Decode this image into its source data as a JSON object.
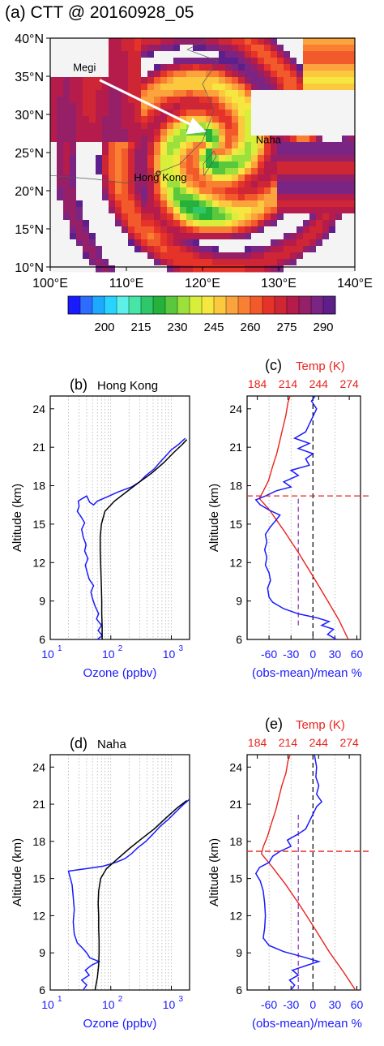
{
  "colors": {
    "ozone": "#1a1aff",
    "temp": "#e8231d",
    "mean": "#000000",
    "tropo": "#e8231d",
    "dashv": "#8f3fbf",
    "grid": "#9a9a9a"
  },
  "chart_data": [
    {
      "panel": "a",
      "type": "heatmap",
      "title": "(a) CTT @ 20160928_05",
      "x_ticks": [
        "100°E",
        "110°E",
        "120°E",
        "130°E",
        "140°E"
      ],
      "y_ticks": [
        "10°N",
        "15°N",
        "20°N",
        "25°N",
        "30°N",
        "35°N",
        "40°N"
      ],
      "xlim": [
        100,
        140
      ],
      "ylim": [
        10,
        40
      ],
      "colorbar": {
        "ticks": [
          "200",
          "215",
          "230",
          "245",
          "260",
          "275",
          "290"
        ],
        "colors": [
          "#1a1aff",
          "#2e6cff",
          "#1ea9ff",
          "#28d4ff",
          "#5cf0e8",
          "#47e6a6",
          "#2ec86a",
          "#25b23c",
          "#5ac83c",
          "#9be03c",
          "#d7ef3a",
          "#f5e640",
          "#fbc83e",
          "#fba33c",
          "#f97f33",
          "#f25a2c",
          "#e6332a",
          "#cf2636",
          "#b51c4c",
          "#962068",
          "#7a2483",
          "#5d1f8c"
        ]
      },
      "labels": {
        "megi": "Megi",
        "hongkong": "Hong Kong",
        "naha": "Naha"
      }
    },
    {
      "panel": "b",
      "type": "line",
      "title": "(b)",
      "subtitle": "Hong Kong",
      "ylabel": "Altitude (km)",
      "xlabel": "Ozone (ppbv)",
      "xscale": "log",
      "xlim": [
        10,
        2000
      ],
      "ylim": [
        6,
        25
      ],
      "x_ticks": [
        {
          "v": 10,
          "t": "10"
        },
        {
          "v": 100,
          "t": "10"
        },
        {
          "v": 1000,
          "t": "10"
        }
      ],
      "x_tick_exps": [
        "1",
        "2",
        "3"
      ],
      "y_ticks": [
        "6",
        "9",
        "12",
        "15",
        "18",
        "21",
        "24"
      ],
      "series": [
        {
          "role": "obs",
          "points": [
            [
              60,
              6
            ],
            [
              72,
              6.3
            ],
            [
              62,
              6.7
            ],
            [
              70,
              7.1
            ],
            [
              58,
              7.6
            ],
            [
              63,
              8.0
            ],
            [
              55,
              8.6
            ],
            [
              50,
              9.2
            ],
            [
              47,
              9.7
            ],
            [
              52,
              10.2
            ],
            [
              44,
              10.7
            ],
            [
              41,
              11.2
            ],
            [
              38,
              11.8
            ],
            [
              42,
              12.3
            ],
            [
              37,
              12.9
            ],
            [
              39,
              13.4
            ],
            [
              35,
              14.0
            ],
            [
              33,
              14.6
            ],
            [
              37,
              15.1
            ],
            [
              32,
              15.6
            ],
            [
              28,
              16.0
            ],
            [
              30,
              16.4
            ],
            [
              29,
              16.8
            ],
            [
              34,
              17.0
            ],
            [
              40,
              17.2
            ],
            [
              45,
              16.7
            ],
            [
              52,
              16.5
            ],
            [
              60,
              16.8
            ],
            [
              85,
              17.1
            ],
            [
              130,
              17.5
            ],
            [
              220,
              17.9
            ],
            [
              300,
              18.3
            ],
            [
              380,
              18.8
            ],
            [
              520,
              19.3
            ],
            [
              640,
              19.8
            ],
            [
              800,
              20.3
            ],
            [
              1000,
              20.8
            ],
            [
              1300,
              21.2
            ],
            [
              1700,
              21.7
            ]
          ]
        },
        {
          "role": "mean",
          "points": [
            [
              72,
              6
            ],
            [
              72,
              7
            ],
            [
              71,
              8
            ],
            [
              71,
              9
            ],
            [
              70,
              10
            ],
            [
              69,
              11
            ],
            [
              68,
              12
            ],
            [
              67,
              13
            ],
            [
              67,
              14
            ],
            [
              70,
              15
            ],
            [
              80,
              16
            ],
            [
              115,
              16.8
            ],
            [
              180,
              17.5
            ],
            [
              300,
              18.3
            ],
            [
              480,
              19
            ],
            [
              750,
              19.8
            ],
            [
              1100,
              20.6
            ],
            [
              1500,
              21.2
            ],
            [
              1800,
              21.6
            ]
          ]
        }
      ]
    },
    {
      "panel": "c",
      "type": "line",
      "title": "(c)",
      "top_label": "Temp (K)",
      "top_ticks": [
        "184",
        "214",
        "244",
        "274"
      ],
      "top_tick_values": [
        184,
        214,
        244,
        274
      ],
      "ylabel": "Altitude (km)",
      "xlabel": "(obs-mean)/mean %",
      "xlim": [
        -90,
        65
      ],
      "toplim": [
        174,
        285
      ],
      "ylim": [
        6,
        25
      ],
      "x_ticks": [
        {
          "v": -60,
          "t": "-60"
        },
        {
          "v": -30,
          "t": "-30"
        },
        {
          "v": 0,
          "t": "0"
        },
        {
          "v": 30,
          "t": "30"
        },
        {
          "v": 60,
          "t": "60"
        }
      ],
      "y_ticks": [
        "6",
        "9",
        "12",
        "15",
        "18",
        "21",
        "24"
      ],
      "tropopause_km": 17.2,
      "purple_x": -20,
      "purple_range": [
        7.1,
        17.2
      ],
      "ratio": [
        [
          32,
          6
        ],
        [
          20,
          6.4
        ],
        [
          28,
          6.8
        ],
        [
          12,
          7.1
        ],
        [
          22,
          7.4
        ],
        [
          5,
          7.7
        ],
        [
          -20,
          8.0
        ],
        [
          -40,
          8.4
        ],
        [
          -55,
          8.9
        ],
        [
          -60,
          9.3
        ],
        [
          -62,
          10
        ],
        [
          -58,
          10.6
        ],
        [
          -60,
          11.2
        ],
        [
          -65,
          11.8
        ],
        [
          -63,
          12.4
        ],
        [
          -66,
          13
        ],
        [
          -63,
          13.6
        ],
        [
          -65,
          14.2
        ],
        [
          -58,
          14.8
        ],
        [
          -52,
          15.2
        ],
        [
          -45,
          15.7
        ],
        [
          -60,
          16.1
        ],
        [
          -72,
          16.5
        ],
        [
          -78,
          16.9
        ],
        [
          -65,
          17.2
        ],
        [
          -50,
          17.6
        ],
        [
          -30,
          17.9
        ],
        [
          -40,
          18.3
        ],
        [
          -20,
          18.8
        ],
        [
          -30,
          19.2
        ],
        [
          -5,
          19.6
        ],
        [
          -10,
          20.1
        ],
        [
          0,
          20.5
        ],
        [
          -20,
          20.9
        ],
        [
          -5,
          21.3
        ],
        [
          -25,
          21.7
        ],
        [
          -10,
          22.2
        ],
        [
          -5,
          22.8
        ],
        [
          0,
          23.4
        ],
        [
          5,
          24
        ],
        [
          -2,
          24.6
        ],
        [
          3,
          25
        ]
      ],
      "temp": [
        [
          273,
          6
        ],
        [
          264,
          7.5
        ],
        [
          253,
          9
        ],
        [
          238,
          11
        ],
        [
          224,
          12.8
        ],
        [
          210,
          14.5
        ],
        [
          195,
          16.2
        ],
        [
          186,
          17
        ],
        [
          190,
          17.6
        ],
        [
          195,
          18.4
        ],
        [
          199,
          19.5
        ],
        [
          203,
          20.5
        ],
        [
          206,
          21.5
        ],
        [
          209,
          22.5
        ],
        [
          212,
          23.5
        ],
        [
          214,
          24.5
        ],
        [
          216,
          25
        ]
      ]
    },
    {
      "panel": "d",
      "type": "line",
      "title": "(d)",
      "subtitle": "Naha",
      "ylabel": "Altitude (km)",
      "xlabel": "Ozone (ppbv)",
      "xscale": "log",
      "xlim": [
        10,
        2000
      ],
      "ylim": [
        6,
        25
      ],
      "x_ticks": [
        {
          "v": 10,
          "t": "10"
        },
        {
          "v": 100,
          "t": "10"
        },
        {
          "v": 1000,
          "t": "10"
        }
      ],
      "x_tick_exps": [
        "1",
        "2",
        "3"
      ],
      "y_ticks": [
        "6",
        "9",
        "12",
        "15",
        "18",
        "21",
        "24"
      ],
      "series": [
        {
          "role": "obs",
          "points": [
            [
              35,
              6
            ],
            [
              40,
              6.4
            ],
            [
              33,
              6.8
            ],
            [
              44,
              7.2
            ],
            [
              38,
              7.6
            ],
            [
              48,
              8
            ],
            [
              64,
              8.3
            ],
            [
              45,
              8.6
            ],
            [
              40,
              9
            ],
            [
              34,
              9.4
            ],
            [
              28,
              9.8
            ],
            [
              25,
              10.5
            ],
            [
              24,
              11.5
            ],
            [
              25,
              12.5
            ],
            [
              24,
              13.5
            ],
            [
              23,
              14.5
            ],
            [
              21,
              15.2
            ],
            [
              20,
              15.6
            ],
            [
              40,
              15.8
            ],
            [
              75,
              16
            ],
            [
              120,
              16.3
            ],
            [
              170,
              16.6
            ],
            [
              220,
              17
            ],
            [
              280,
              17.5
            ],
            [
              380,
              18
            ],
            [
              500,
              18.6
            ],
            [
              650,
              19.2
            ],
            [
              900,
              19.8
            ],
            [
              1200,
              20.4
            ],
            [
              1600,
              21
            ],
            [
              2000,
              21.4
            ]
          ]
        },
        {
          "role": "mean",
          "points": [
            [
              55,
              6
            ],
            [
              60,
              7
            ],
            [
              63,
              8
            ],
            [
              64,
              9
            ],
            [
              64,
              10
            ],
            [
              63,
              11
            ],
            [
              63,
              12
            ],
            [
              62,
              13
            ],
            [
              63,
              14
            ],
            [
              68,
              15
            ],
            [
              85,
              15.8
            ],
            [
              130,
              16.6
            ],
            [
              200,
              17.4
            ],
            [
              320,
              18.2
            ],
            [
              520,
              19
            ],
            [
              820,
              19.9
            ],
            [
              1250,
              20.7
            ],
            [
              1800,
              21.3
            ]
          ]
        }
      ]
    },
    {
      "panel": "e",
      "type": "line",
      "title": "(e)",
      "top_label": "Temp (K)",
      "top_ticks": [
        "184",
        "214",
        "244",
        "274"
      ],
      "top_tick_values": [
        184,
        214,
        244,
        274
      ],
      "ylabel": "Altitude (km)",
      "xlabel": "(obs-mean)/mean %",
      "xlim": [
        -90,
        65
      ],
      "toplim": [
        174,
        285
      ],
      "ylim": [
        6,
        25
      ],
      "x_ticks": [
        {
          "v": -60,
          "t": "-60"
        },
        {
          "v": -30,
          "t": "-30"
        },
        {
          "v": 0,
          "t": "0"
        },
        {
          "v": 30,
          "t": "30"
        },
        {
          "v": 60,
          "t": "60"
        }
      ],
      "y_ticks": [
        "6",
        "9",
        "12",
        "15",
        "18",
        "21",
        "24"
      ],
      "tropopause_km": 17.2,
      "purple_x": -20,
      "purple_range": [
        6.0,
        20.2
      ],
      "ratio": [
        [
          -30,
          6
        ],
        [
          -25,
          6.4
        ],
        [
          -32,
          6.8
        ],
        [
          -20,
          7.2
        ],
        [
          -28,
          7.6
        ],
        [
          -8,
          8
        ],
        [
          8,
          8.3
        ],
        [
          -15,
          8.7
        ],
        [
          -40,
          9.1
        ],
        [
          -60,
          9.6
        ],
        [
          -68,
          10.2
        ],
        [
          -66,
          11
        ],
        [
          -65,
          12
        ],
        [
          -66,
          13
        ],
        [
          -68,
          14
        ],
        [
          -72,
          14.8
        ],
        [
          -78,
          15.4
        ],
        [
          -73,
          15.9
        ],
        [
          -60,
          16.3
        ],
        [
          -55,
          16.8
        ],
        [
          -45,
          17.2
        ],
        [
          -30,
          17.6
        ],
        [
          -35,
          18.1
        ],
        [
          -20,
          18.6
        ],
        [
          -10,
          19
        ],
        [
          -5,
          19.6
        ],
        [
          0,
          20.2
        ],
        [
          5,
          20.8
        ],
        [
          12,
          21.2
        ],
        [
          5,
          21.8
        ],
        [
          8,
          22.5
        ],
        [
          4,
          23.2
        ],
        [
          5,
          24
        ],
        [
          2,
          25
        ]
      ],
      "temp": [
        [
          280,
          6
        ],
        [
          268,
          7.5
        ],
        [
          255,
          9
        ],
        [
          240,
          11
        ],
        [
          226,
          12.8
        ],
        [
          212,
          14.5
        ],
        [
          198,
          16
        ],
        [
          188,
          17
        ],
        [
          190,
          17.6
        ],
        [
          194,
          18.4
        ],
        [
          198,
          19.5
        ],
        [
          202,
          20.5
        ],
        [
          205,
          21.5
        ],
        [
          208,
          22.5
        ],
        [
          212,
          23.5
        ],
        [
          214,
          24.5
        ],
        [
          216,
          25
        ]
      ]
    }
  ]
}
